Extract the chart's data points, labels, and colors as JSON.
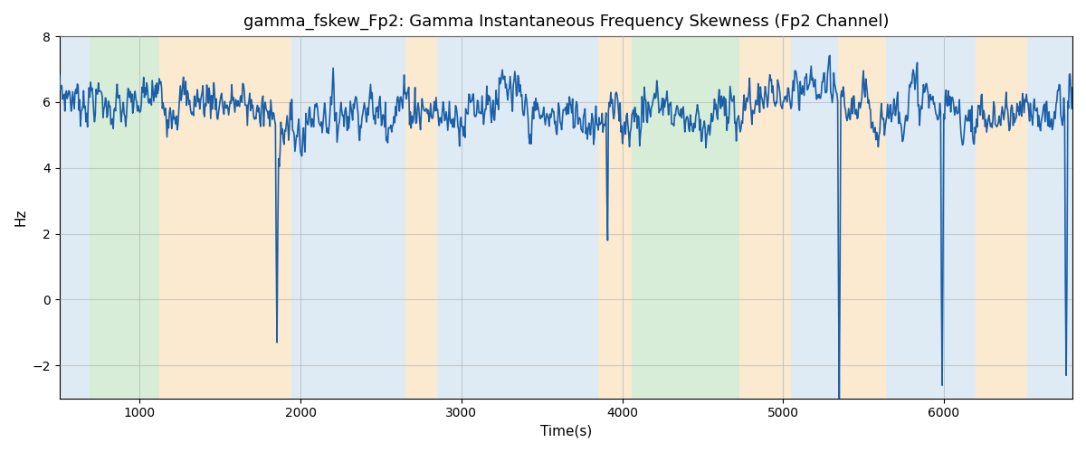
{
  "title": "gamma_fskew_Fp2: Gamma Instantaneous Frequency Skewness (Fp2 Channel)",
  "xlabel": "Time(s)",
  "ylabel": "Hz",
  "ylim": [
    -3,
    8
  ],
  "yticks": [
    -2,
    0,
    2,
    4,
    6,
    8
  ],
  "xlim": [
    500,
    6800
  ],
  "xticks": [
    1000,
    2000,
    3000,
    4000,
    5000,
    6000
  ],
  "line_color": "#1a5fa8",
  "line_width": 1.2,
  "bg_bands": [
    {
      "xmin": 500,
      "xmax": 690,
      "color": "#b8d4e8",
      "alpha": 0.45
    },
    {
      "xmin": 690,
      "xmax": 1120,
      "color": "#a8d8a8",
      "alpha": 0.45
    },
    {
      "xmin": 1120,
      "xmax": 1940,
      "color": "#f5c98a",
      "alpha": 0.4
    },
    {
      "xmin": 1940,
      "xmax": 2650,
      "color": "#b8d4e8",
      "alpha": 0.45
    },
    {
      "xmin": 2650,
      "xmax": 2850,
      "color": "#f5c98a",
      "alpha": 0.4
    },
    {
      "xmin": 2850,
      "xmax": 3850,
      "color": "#b8d4e8",
      "alpha": 0.45
    },
    {
      "xmin": 3850,
      "xmax": 4060,
      "color": "#f5c98a",
      "alpha": 0.4
    },
    {
      "xmin": 4060,
      "xmax": 4730,
      "color": "#a8d8a8",
      "alpha": 0.45
    },
    {
      "xmin": 4730,
      "xmax": 5050,
      "color": "#f5c98a",
      "alpha": 0.4
    },
    {
      "xmin": 5050,
      "xmax": 5340,
      "color": "#b8d4e8",
      "alpha": 0.45
    },
    {
      "xmin": 5340,
      "xmax": 5640,
      "color": "#f5c98a",
      "alpha": 0.4
    },
    {
      "xmin": 5640,
      "xmax": 6200,
      "color": "#b8d4e8",
      "alpha": 0.45
    },
    {
      "xmin": 6200,
      "xmax": 6520,
      "color": "#f5c98a",
      "alpha": 0.4
    },
    {
      "xmin": 6520,
      "xmax": 6800,
      "color": "#b8d4e8",
      "alpha": 0.45
    }
  ],
  "grid_color": "#b0b0b0",
  "grid_alpha": 0.6,
  "grid_linewidth": 0.8,
  "title_fontsize": 13,
  "label_fontsize": 11,
  "tick_fontsize": 10,
  "seed": 7,
  "n_points": 1300,
  "x_start": 500,
  "x_end": 6800,
  "base_mean": 5.85,
  "noise_std": 0.38
}
